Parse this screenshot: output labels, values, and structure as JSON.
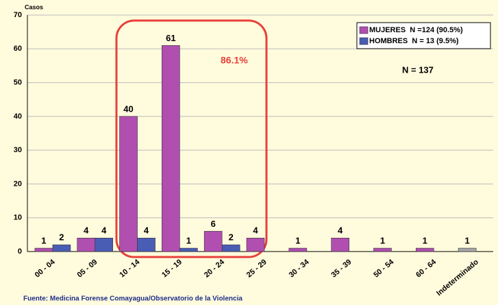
{
  "chart_data": {
    "type": "bar",
    "y_label": "Casos",
    "categories": [
      "00 - 04",
      "05 - 09",
      "10 - 14",
      "15 - 19",
      "20 - 24",
      "25 - 29",
      "30 - 34",
      "35 - 39",
      "50 - 54",
      "60 - 64",
      "Indeterminado"
    ],
    "series": [
      {
        "name": "MUJERES  N =124 (90.5%)",
        "color": "#b04fb0",
        "values": [
          1,
          4,
          40,
          61,
          6,
          4,
          1,
          4,
          1,
          1,
          null
        ]
      },
      {
        "name": "HOMBRES  N = 13 (9.5%)",
        "color": "#4a5db5",
        "values": [
          2,
          4,
          4,
          1,
          2,
          null,
          null,
          null,
          null,
          null,
          null
        ]
      },
      {
        "color": "#a6a6a6",
        "values": [
          null,
          null,
          null,
          null,
          null,
          null,
          null,
          null,
          null,
          null,
          1
        ]
      }
    ],
    "ylim": [
      0,
      70
    ],
    "yticks": [
      0,
      10,
      20,
      30,
      40,
      50,
      60,
      70
    ],
    "grid": true,
    "legend": "upper right",
    "annotations": [
      "86.1%",
      "N = 137"
    ],
    "source": "Fuente: Medicina Forense Comayagua/Observatorio de la Violencia"
  }
}
